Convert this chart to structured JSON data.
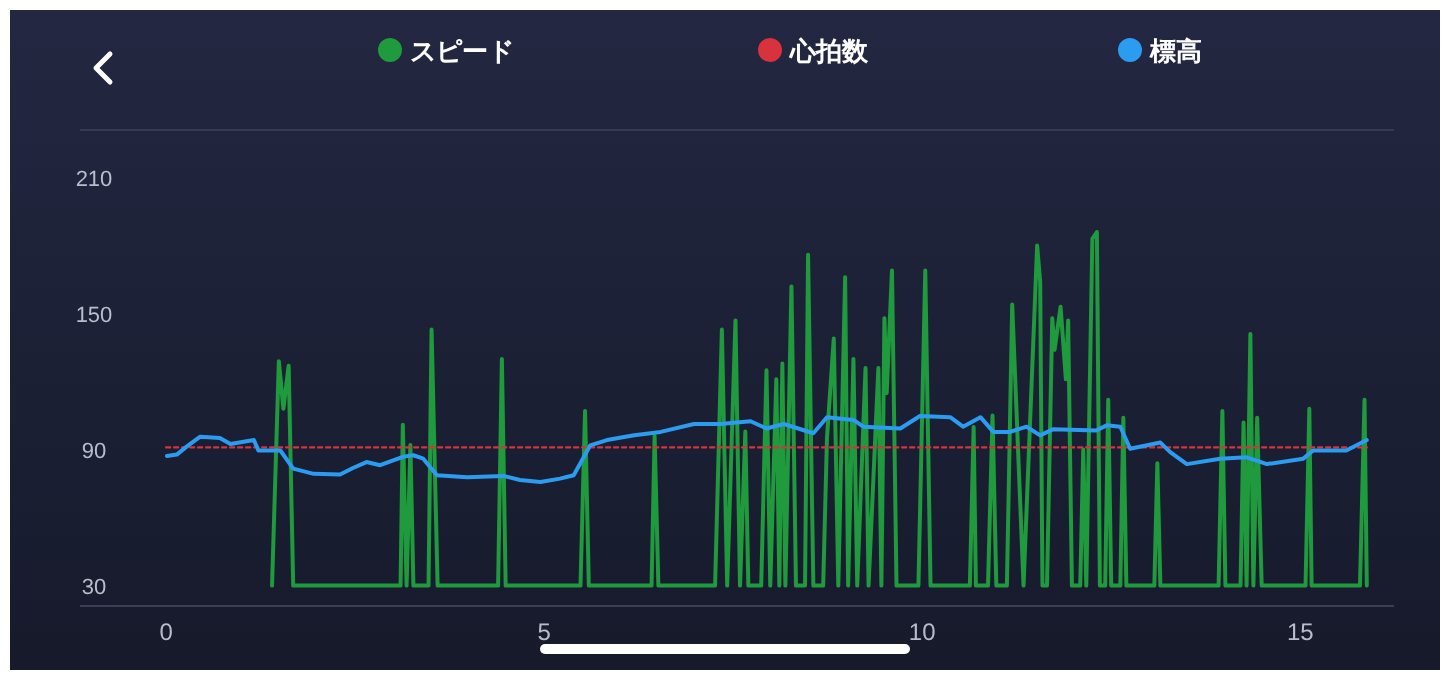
{
  "chart_data": {
    "type": "line",
    "legend": "top",
    "grid": false,
    "xlim": [
      -1.14,
      16.24
    ],
    "ylim": [
      21,
      231
    ],
    "xticks": [
      0,
      5,
      10,
      15
    ],
    "yticks": [
      30,
      90,
      150,
      210
    ],
    "series": [
      {
        "name": "スピード",
        "color": "#1f9a3c",
        "x": [
          1.4,
          1.49,
          1.55,
          1.62,
          1.68,
          3.1,
          3.13,
          3.18,
          3.23,
          3.27,
          3.47,
          3.51,
          3.59,
          4.39,
          4.44,
          4.49,
          5.48,
          5.54,
          5.59,
          6.42,
          6.46,
          6.51,
          7.26,
          7.35,
          7.42,
          7.53,
          7.59,
          7.66,
          7.7,
          7.87,
          7.94,
          7.99,
          8.07,
          8.11,
          8.15,
          8.19,
          8.27,
          8.33,
          8.45,
          8.49,
          8.56,
          8.69,
          8.74,
          8.83,
          8.89,
          8.98,
          9.02,
          9.09,
          9.14,
          9.25,
          9.29,
          9.42,
          9.46,
          9.5,
          9.53,
          9.6,
          9.66,
          9.95,
          10.04,
          10.11,
          10.63,
          10.68,
          10.71,
          10.87,
          10.93,
          10.98,
          11.12,
          11.19,
          11.34,
          11.52,
          11.56,
          11.59,
          11.65,
          11.72,
          11.75,
          11.83,
          11.9,
          11.93,
          11.98,
          12.09,
          12.13,
          12.17,
          12.25,
          12.31,
          12.35,
          12.42,
          12.46,
          12.5,
          12.62,
          12.66,
          12.7,
          13.07,
          13.11,
          13.15,
          13.92,
          13.97,
          14.01,
          14.21,
          14.25,
          14.29,
          14.34,
          14.38,
          14.43,
          14.49,
          15.07,
          15.12,
          15.15,
          15.79,
          15.85,
          15.88
        ],
        "values": [
          30,
          129,
          108,
          127,
          30,
          30,
          101,
          30,
          92,
          30,
          30,
          143,
          30,
          30,
          130,
          30,
          30,
          107,
          30,
          30,
          96,
          30,
          30,
          143,
          30,
          147,
          30,
          98,
          30,
          30,
          125,
          30,
          121,
          30,
          128,
          30,
          162,
          30,
          30,
          176,
          30,
          30,
          95,
          139,
          30,
          166,
          30,
          130,
          30,
          126,
          30,
          126,
          30,
          148,
          115,
          169,
          30,
          30,
          169,
          30,
          30,
          100,
          30,
          30,
          105,
          30,
          30,
          154,
          30,
          180,
          164,
          30,
          30,
          148,
          134,
          153,
          121,
          147,
          30,
          30,
          90,
          30,
          183,
          186,
          30,
          30,
          112,
          30,
          30,
          104,
          30,
          30,
          84,
          30,
          30,
          107,
          30,
          30,
          102,
          30,
          141,
          30,
          104,
          30,
          30,
          108,
          30,
          30,
          112,
          30
        ]
      },
      {
        "name": "心拍数",
        "color": "#d8323c",
        "line_style": "dotted",
        "x": [
          0,
          15.88
        ],
        "values": [
          91,
          91
        ]
      },
      {
        "name": "標高",
        "color": "#2b9cf0",
        "x": [
          0.01,
          0.14,
          0.27,
          0.45,
          0.71,
          0.85,
          1.16,
          1.22,
          1.51,
          1.68,
          1.95,
          2.3,
          2.47,
          2.65,
          2.83,
          3.14,
          3.27,
          3.4,
          3.58,
          3.98,
          4.46,
          4.68,
          4.95,
          5.21,
          5.39,
          5.61,
          5.83,
          6.19,
          6.54,
          6.98,
          7.33,
          7.73,
          7.94,
          8.17,
          8.56,
          8.74,
          9.09,
          9.22,
          9.71,
          9.97,
          10.37,
          10.54,
          10.77,
          10.94,
          11.16,
          11.38,
          11.56,
          11.73,
          12.3,
          12.44,
          12.62,
          12.75,
          13.15,
          13.28,
          13.5,
          13.94,
          14.29,
          14.56,
          15.04,
          15.17,
          15.61,
          15.88
        ],
        "values": [
          87.2,
          87.8,
          91.3,
          95.7,
          95.1,
          92.5,
          94.2,
          89.6,
          89.6,
          81.6,
          79.3,
          79,
          81.9,
          84.5,
          83.1,
          86.9,
          87.5,
          86,
          78.7,
          77.8,
          78.4,
          76.6,
          75.7,
          77.2,
          78.7,
          91.9,
          94.2,
          96.3,
          97.8,
          101.3,
          101.3,
          102.5,
          99.3,
          101.3,
          97.2,
          104.3,
          103.1,
          100.1,
          99.3,
          104.8,
          104.3,
          100.1,
          104.3,
          97.8,
          97.8,
          100.1,
          96.3,
          99,
          98.4,
          100.7,
          100.1,
          90.4,
          93.1,
          88.9,
          83.6,
          86,
          86.6,
          83.6,
          86,
          89.6,
          89.6,
          94.2
        ]
      }
    ]
  }
}
